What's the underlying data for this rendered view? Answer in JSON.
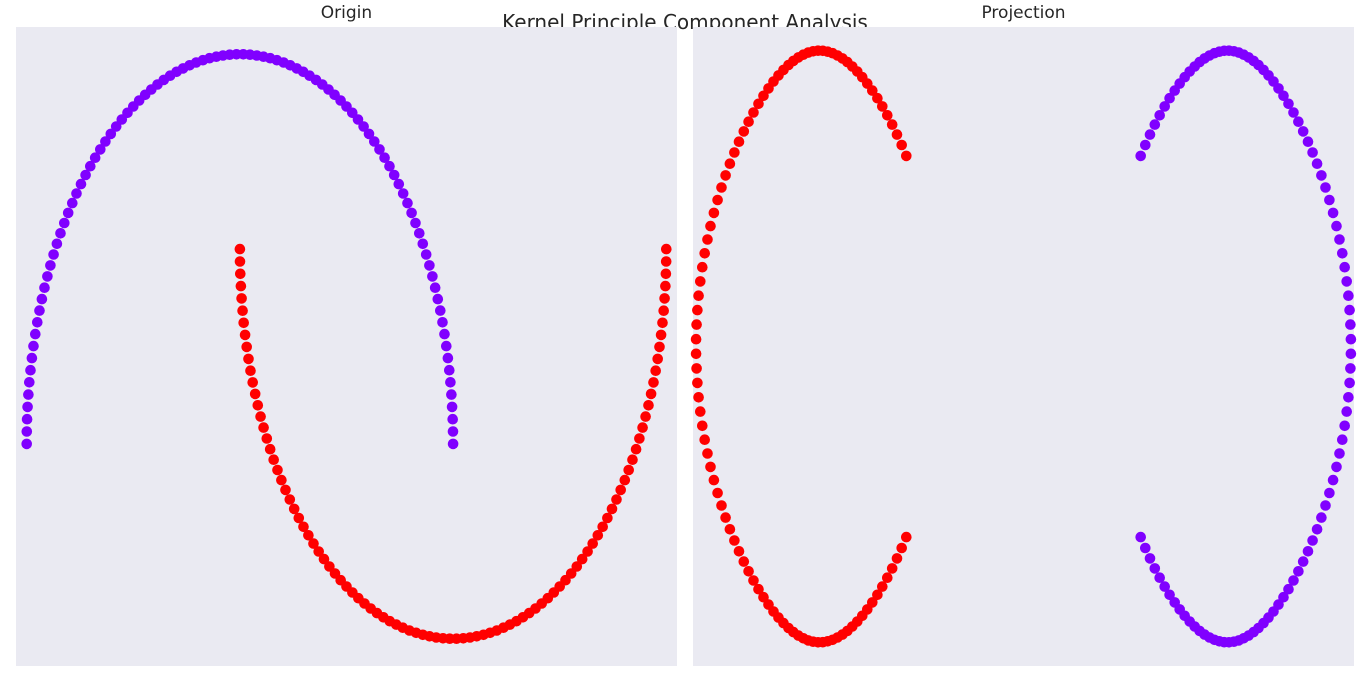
{
  "figure_title": "Kernel Principle Component Analysis",
  "colors": {
    "background": "#eaeaf2",
    "class_0": "#8000ff",
    "class_1": "#ff0000"
  },
  "chart_data": [
    {
      "type": "scatter",
      "title": "Origin",
      "xlabel": "",
      "ylabel": "",
      "grid": false,
      "xlim": [
        -1.05,
        2.05
      ],
      "ylim": [
        -0.57,
        1.07
      ],
      "n_points_per_class": 100,
      "series": [
        {
          "class": 0,
          "color": "#8000ff",
          "shape": "upper half circle",
          "center": [
            0,
            0
          ],
          "radius": 1,
          "angle_deg": [
            0,
            180
          ]
        },
        {
          "class": 1,
          "color": "#ff0000",
          "shape": "lower half circle",
          "center": [
            1,
            0.5
          ],
          "radius": 1,
          "angle_deg": [
            180,
            360
          ]
        }
      ]
    },
    {
      "type": "scatter",
      "title": "Projection",
      "xlabel": "",
      "ylabel": "",
      "grid": false,
      "xlim": [
        -1.07,
        1.07
      ],
      "ylim": [
        -0.54,
        0.54
      ],
      "n_points_per_class": 100,
      "series": [
        {
          "class": 1,
          "color": "#ff0000",
          "shape": "left loop",
          "x_range": [
            -0.98,
            -0.3
          ],
          "y_range": [
            -0.5,
            0.5
          ],
          "gap_ends": [
            [
              -0.35,
              0.13
            ],
            [
              -0.3,
              -0.13
            ]
          ]
        },
        {
          "class": 0,
          "color": "#8000ff",
          "shape": "right loop",
          "x_range": [
            0.3,
            0.98
          ],
          "y_range": [
            -0.5,
            0.5
          ],
          "gap_ends": [
            [
              0.35,
              0.13
            ],
            [
              0.3,
              -0.13
            ]
          ]
        }
      ]
    }
  ]
}
